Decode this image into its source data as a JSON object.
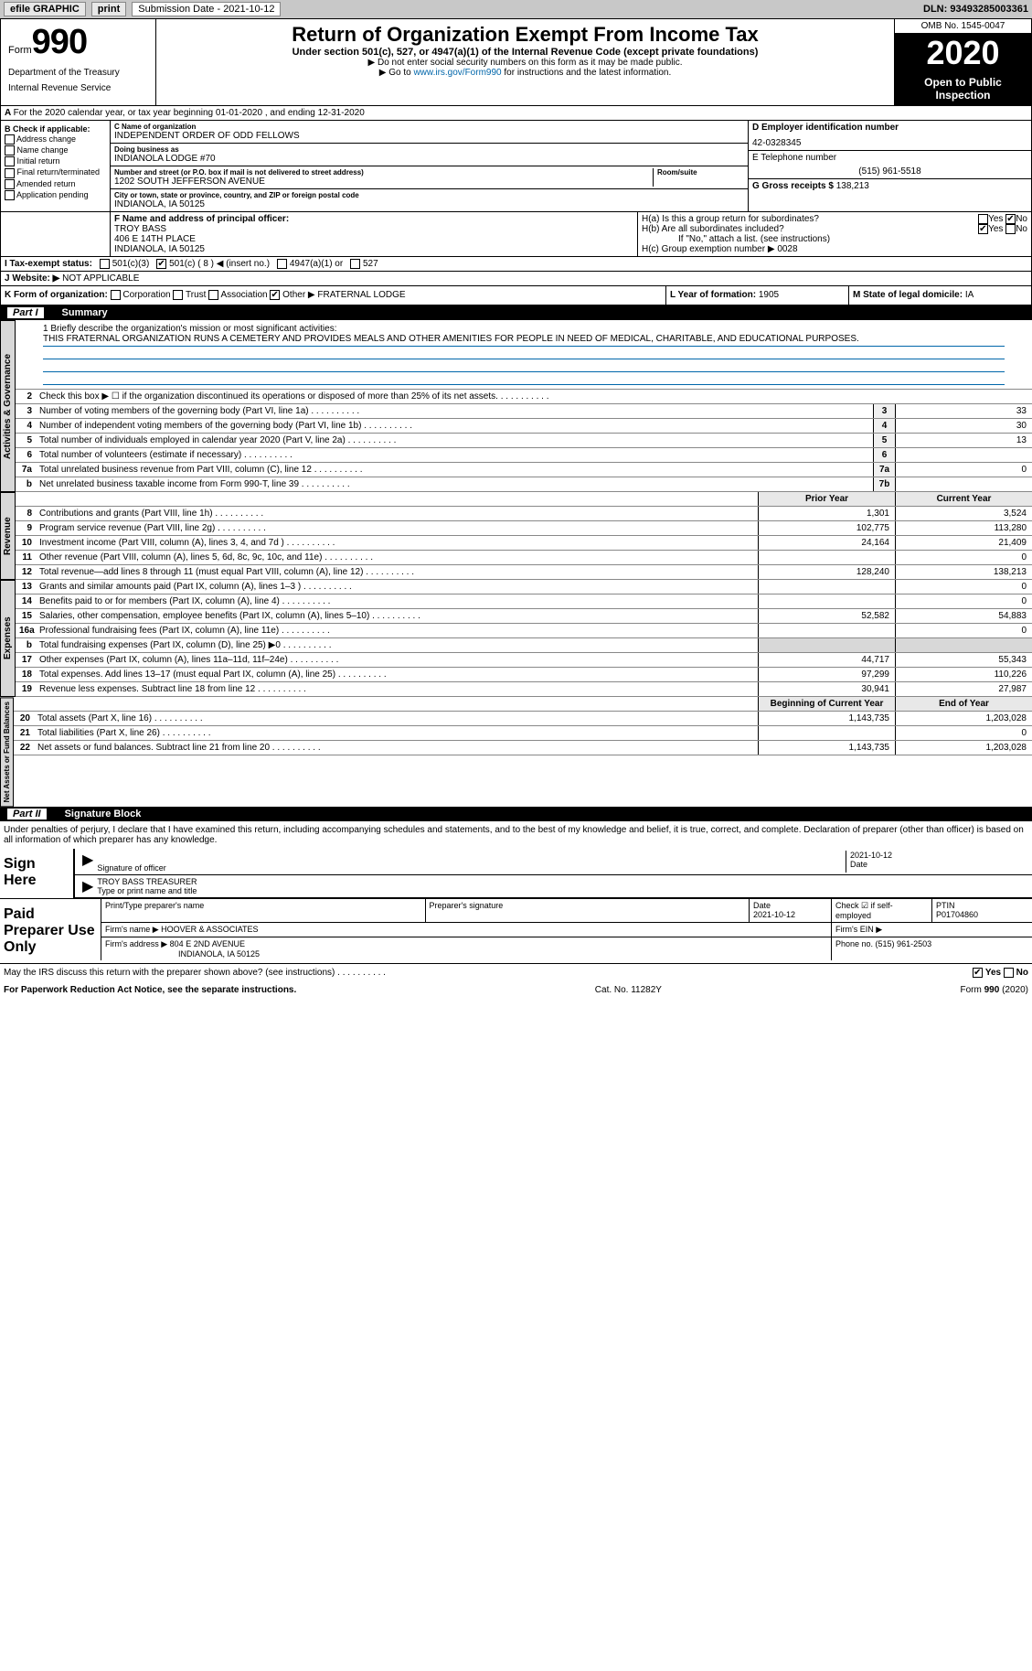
{
  "top": {
    "efile": "efile GRAPHIC",
    "print": "print",
    "sub_label": "Submission Date - ",
    "sub_date": "2021-10-12",
    "dln": "DLN: 93493285003361"
  },
  "header": {
    "form_word": "Form",
    "form_num": "990",
    "dept1": "Department of the Treasury",
    "dept2": "Internal Revenue Service",
    "title": "Return of Organization Exempt From Income Tax",
    "sub1": "Under section 501(c), 527, or 4947(a)(1) of the Internal Revenue Code (except private foundations)",
    "sub2": "▶ Do not enter social security numbers on this form as it may be made public.",
    "sub3_pre": "▶ Go to ",
    "sub3_link": "www.irs.gov/Form990",
    "sub3_post": " for instructions and the latest information.",
    "omb": "OMB No. 1545-0047",
    "year": "2020",
    "open": "Open to Public Inspection"
  },
  "row_a": "For the 2020 calendar year, or tax year beginning 01-01-2020    , and ending 12-31-2020",
  "box_b": {
    "label": "B Check if applicable:",
    "items": [
      "Address change",
      "Name change",
      "Initial return",
      "Final return/terminated",
      "Amended return",
      "Application pending"
    ]
  },
  "box_c": {
    "label": "C Name of organization",
    "name": "INDEPENDENT ORDER OF ODD FELLOWS",
    "dba_label": "Doing business as",
    "dba": "INDIANOLA LODGE #70",
    "addr_label": "Number and street (or P.O. box if mail is not delivered to street address)",
    "addr": "1202 SOUTH JEFFERSON AVENUE",
    "room_label": "Room/suite",
    "city_label": "City or town, state or province, country, and ZIP or foreign postal code",
    "city": "INDIANOLA, IA  50125"
  },
  "box_d": {
    "label": "D Employer identification number",
    "val": "42-0328345"
  },
  "box_e": {
    "label": "E Telephone number",
    "val": "(515) 961-5518"
  },
  "box_g": {
    "label": "G Gross receipts $ ",
    "val": "138,213"
  },
  "box_f": {
    "label": "F  Name and address of principal officer:",
    "name": "TROY BASS",
    "addr1": "406 E 14TH PLACE",
    "addr2": "INDIANOLA, IA  50125"
  },
  "box_h": {
    "a": "H(a)  Is this a group return for subordinates?",
    "b": "H(b)  Are all subordinates included?",
    "b_note": "If \"No,\" attach a list. (see instructions)",
    "c": "H(c)  Group exemption number ▶",
    "c_val": "0028",
    "yes": "Yes",
    "no": "No"
  },
  "row_i": {
    "label": "I    Tax-exempt status:",
    "opts": [
      "501(c)(3)",
      "501(c) ( 8 ) ◀ (insert no.)",
      "4947(a)(1) or",
      "527"
    ]
  },
  "row_j": {
    "label": "J    Website: ▶",
    "val": "NOT APPLICABLE"
  },
  "row_k": {
    "label": "K Form of organization:",
    "opts": [
      "Corporation",
      "Trust",
      "Association",
      "Other ▶"
    ],
    "other_val": "FRATERNAL LODGE"
  },
  "row_l": {
    "label": "L Year of formation: ",
    "val": "1905"
  },
  "row_m": {
    "label": "M State of legal domicile: ",
    "val": "IA"
  },
  "part1": {
    "num": "Part I",
    "title": "Summary"
  },
  "mission": {
    "q": "1   Briefly describe the organization's mission or most significant activities:",
    "text": "THIS FRATERNAL ORGANIZATION RUNS A CEMETERY AND PROVIDES MEALS AND OTHER AMENITIES FOR PEOPLE IN NEED OF MEDICAL, CHARITABLE, AND EDUCATIONAL PURPOSES."
  },
  "gov_lines": [
    {
      "n": "2",
      "t": "Check this box ▶ ☐  if the organization discontinued its operations or disposed of more than 25% of its net assets."
    },
    {
      "n": "3",
      "t": "Number of voting members of the governing body (Part VI, line 1a)",
      "b": "3",
      "v": "33"
    },
    {
      "n": "4",
      "t": "Number of independent voting members of the governing body (Part VI, line 1b)",
      "b": "4",
      "v": "30"
    },
    {
      "n": "5",
      "t": "Total number of individuals employed in calendar year 2020 (Part V, line 2a)",
      "b": "5",
      "v": "13"
    },
    {
      "n": "6",
      "t": "Total number of volunteers (estimate if necessary)",
      "b": "6",
      "v": ""
    },
    {
      "n": "7a",
      "t": "Total unrelated business revenue from Part VIII, column (C), line 12",
      "b": "7a",
      "v": "0"
    },
    {
      "n": "b",
      "t": "Net unrelated business taxable income from Form 990-T, line 39",
      "b": "7b",
      "v": ""
    }
  ],
  "col_headers": {
    "prior": "Prior Year",
    "current": "Current Year"
  },
  "rev_lines": [
    {
      "n": "8",
      "t": "Contributions and grants (Part VIII, line 1h)",
      "p": "1,301",
      "c": "3,524"
    },
    {
      "n": "9",
      "t": "Program service revenue (Part VIII, line 2g)",
      "p": "102,775",
      "c": "113,280"
    },
    {
      "n": "10",
      "t": "Investment income (Part VIII, column (A), lines 3, 4, and 7d )",
      "p": "24,164",
      "c": "21,409"
    },
    {
      "n": "11",
      "t": "Other revenue (Part VIII, column (A), lines 5, 6d, 8c, 9c, 10c, and 11e)",
      "p": "",
      "c": "0"
    },
    {
      "n": "12",
      "t": "Total revenue—add lines 8 through 11 (must equal Part VIII, column (A), line 12)",
      "p": "128,240",
      "c": "138,213"
    }
  ],
  "exp_lines": [
    {
      "n": "13",
      "t": "Grants and similar amounts paid (Part IX, column (A), lines 1–3 )",
      "p": "",
      "c": "0"
    },
    {
      "n": "14",
      "t": "Benefits paid to or for members (Part IX, column (A), line 4)",
      "p": "",
      "c": "0"
    },
    {
      "n": "15",
      "t": "Salaries, other compensation, employee benefits (Part IX, column (A), lines 5–10)",
      "p": "52,582",
      "c": "54,883"
    },
    {
      "n": "16a",
      "t": "Professional fundraising fees (Part IX, column (A), line 11e)",
      "p": "",
      "c": "0"
    },
    {
      "n": "b",
      "t": "Total fundraising expenses (Part IX, column (D), line 25) ▶0",
      "p": "shaded",
      "c": "shaded"
    },
    {
      "n": "17",
      "t": "Other expenses (Part IX, column (A), lines 11a–11d, 11f–24e)",
      "p": "44,717",
      "c": "55,343"
    },
    {
      "n": "18",
      "t": "Total expenses. Add lines 13–17 (must equal Part IX, column (A), line 25)",
      "p": "97,299",
      "c": "110,226"
    },
    {
      "n": "19",
      "t": "Revenue less expenses. Subtract line 18 from line 12",
      "p": "30,941",
      "c": "27,987"
    }
  ],
  "na_headers": {
    "begin": "Beginning of Current Year",
    "end": "End of Year"
  },
  "na_lines": [
    {
      "n": "20",
      "t": "Total assets (Part X, line 16)",
      "p": "1,143,735",
      "c": "1,203,028"
    },
    {
      "n": "21",
      "t": "Total liabilities (Part X, line 26)",
      "p": "",
      "c": "0"
    },
    {
      "n": "22",
      "t": "Net assets or fund balances. Subtract line 21 from line 20",
      "p": "1,143,735",
      "c": "1,203,028"
    }
  ],
  "vert_labels": {
    "gov": "Activities & Governance",
    "rev": "Revenue",
    "exp": "Expenses",
    "na": "Net Assets or Fund Balances"
  },
  "part2": {
    "num": "Part II",
    "title": "Signature Block"
  },
  "sig": {
    "decl": "Under penalties of perjury, I declare that I have examined this return, including accompanying schedules and statements, and to the best of my knowledge and belief, it is true, correct, and complete. Declaration of preparer (other than officer) is based on all information of which preparer has any knowledge.",
    "sign_here": "Sign Here",
    "sig_officer": "Signature of officer",
    "date": "Date",
    "date_val": "2021-10-12",
    "name": "TROY BASS  TREASURER",
    "name_label": "Type or print name and title"
  },
  "prep": {
    "label": "Paid Preparer Use Only",
    "print_name": "Print/Type preparer's name",
    "prep_sig": "Preparer's signature",
    "date": "Date",
    "date_val": "2021-10-12",
    "check_label": "Check ☑ if self-employed",
    "ptin_label": "PTIN",
    "ptin": "P01704860",
    "firm_name_label": "Firm's name   ▶",
    "firm_name": "HOOVER & ASSOCIATES",
    "firm_ein_label": "Firm's EIN ▶",
    "firm_addr_label": "Firm's address ▶",
    "firm_addr": "804 E 2ND AVENUE",
    "firm_city": "INDIANOLA, IA  50125",
    "phone_label": "Phone no. ",
    "phone": "(515) 961-2503"
  },
  "discuss": {
    "q": "May the IRS discuss this return with the preparer shown above? (see instructions)",
    "yes": "Yes",
    "no": "No"
  },
  "footer": {
    "left": "For Paperwork Reduction Act Notice, see the separate instructions.",
    "mid": "Cat. No. 11282Y",
    "right": "Form 990 (2020)"
  }
}
